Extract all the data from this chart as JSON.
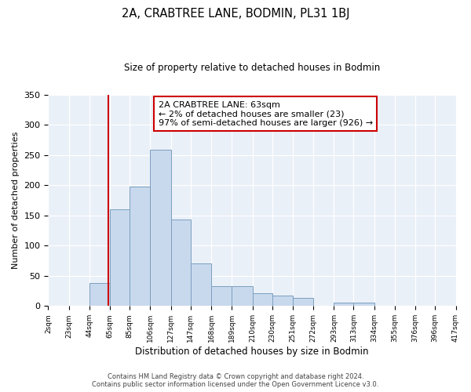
{
  "title": "2A, CRABTREE LANE, BODMIN, PL31 1BJ",
  "subtitle": "Size of property relative to detached houses in Bodmin",
  "xlabel": "Distribution of detached houses by size in Bodmin",
  "ylabel": "Number of detached properties",
  "bin_edges": [
    2,
    23,
    44,
    65,
    85,
    106,
    127,
    147,
    168,
    189,
    210,
    230,
    251,
    272,
    293,
    313,
    334,
    355,
    376,
    396,
    417
  ],
  "bar_heights": [
    0,
    0,
    38,
    160,
    198,
    258,
    143,
    70,
    33,
    33,
    21,
    17,
    13,
    0,
    5,
    5,
    0,
    1,
    0,
    1
  ],
  "bar_color": "#c9d9ed",
  "bar_edge_color": "#7a9fc0",
  "property_line_x": 63,
  "property_line_color": "#cc0000",
  "annotation_text": "2A CRABTREE LANE: 63sqm\n← 2% of detached houses are smaller (23)\n97% of semi-detached houses are larger (926) →",
  "annotation_box_color": "#cc0000",
  "ylim": [
    0,
    350
  ],
  "yticks": [
    0,
    50,
    100,
    150,
    200,
    250,
    300,
    350
  ],
  "footer_line1": "Contains HM Land Registry data © Crown copyright and database right 2024.",
  "footer_line2": "Contains public sector information licensed under the Open Government Licence v3.0.",
  "background_color": "#ffffff",
  "plot_background_color": "#eaf0f8"
}
